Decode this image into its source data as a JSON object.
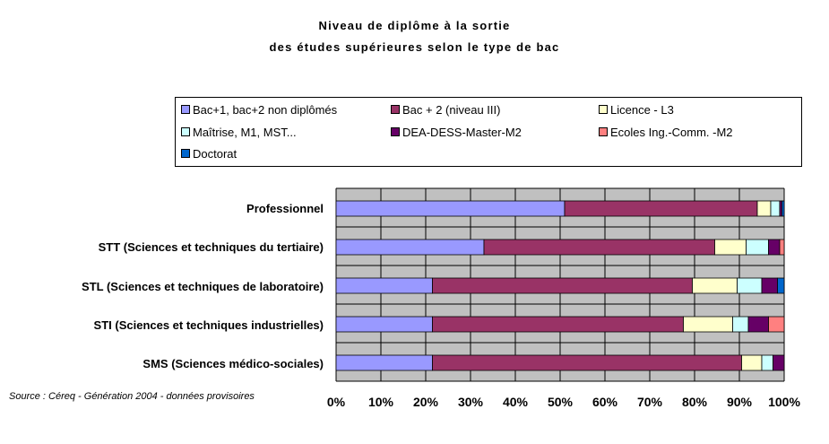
{
  "chart_data": {
    "type": "bar",
    "stacked": true,
    "orientation": "horizontal",
    "title_lines": [
      "Niveau de diplôme à la sortie",
      "des études supérieures selon le type de bac"
    ],
    "categories": [
      "Professionnel",
      "STT (Sciences et techniques du tertiaire)",
      "STL (Sciences et techniques de laboratoire)",
      "STI  (Sciences et techniques industrielles)",
      "SMS (Sciences médico-sociales)"
    ],
    "series": [
      {
        "name": "Bac+1, bac+2 non diplômés",
        "color": "#9999ff",
        "values": [
          51,
          33,
          21.5,
          21.5,
          21.5
        ]
      },
      {
        "name": "Bac + 2 (niveau III)",
        "color": "#993366",
        "values": [
          43,
          51.5,
          58,
          56,
          69
        ]
      },
      {
        "name": "Licence  - L3",
        "color": "#ffffcc",
        "values": [
          3,
          7,
          10,
          11,
          4.5
        ]
      },
      {
        "name": "Maîtrise, M1, MST...",
        "color": "#ccffff",
        "values": [
          2,
          5,
          5.5,
          3.5,
          2.5
        ]
      },
      {
        "name": "DEA-DESS-Master-M2",
        "color": "#660066",
        "values": [
          0.5,
          2.5,
          3.5,
          4.5,
          2.5
        ]
      },
      {
        "name": "Ecoles Ing.-Comm. -M2",
        "color": "#ff8080",
        "values": [
          0,
          1,
          0,
          3.5,
          0
        ]
      },
      {
        "name": "Doctorat",
        "color": "#0066cc",
        "values": [
          0.5,
          0,
          1.5,
          0,
          0
        ]
      }
    ],
    "x_ticks": [
      "0%",
      "10%",
      "20%",
      "30%",
      "40%",
      "50%",
      "60%",
      "70%",
      "80%",
      "90%",
      "100%"
    ],
    "xlim": [
      0,
      100
    ],
    "grid": true,
    "plot_background": "#c0c0c0",
    "legend_position": "top",
    "source": "Source : Céreq - Génération 2004 - données provisoires"
  }
}
